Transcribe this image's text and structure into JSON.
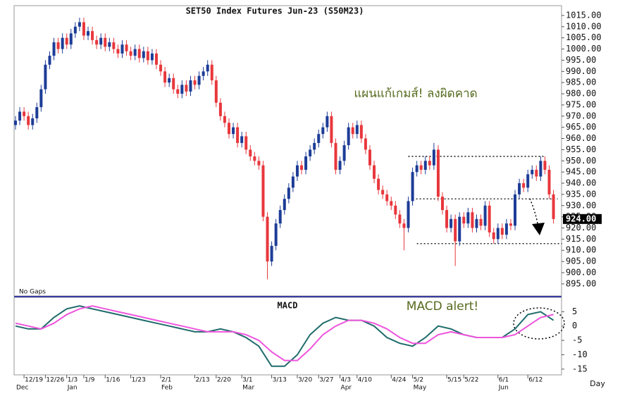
{
  "chart_data": [
    {
      "type": "candlestick",
      "title": "SET50 Index Futures Jun-23 (S50M23)",
      "note": "No Gaps",
      "annotation": "แผนแก้เกมส์! ลงผิดคาด",
      "x_label": "Day",
      "last_label": "924.00",
      "up_color": "#1c3c96",
      "down_color": "#e8373c",
      "categories": [
        null,
        null,
        "12/19",
        null,
        null,
        null,
        null,
        "12/26",
        null,
        null,
        null,
        null,
        "1/3",
        null,
        null,
        null,
        "1/9",
        null,
        null,
        null,
        null,
        "1/16",
        null,
        null,
        null,
        null,
        null,
        "1/23",
        null,
        null,
        null,
        null,
        null,
        null,
        "2/1",
        null,
        null,
        null,
        null,
        null,
        null,
        null,
        "2/13",
        null,
        null,
        null,
        null,
        "2/20",
        null,
        null,
        null,
        null,
        null,
        "3/1",
        null,
        null,
        null,
        null,
        null,
        null,
        "3/13",
        null,
        null,
        null,
        null,
        null,
        "3/20",
        null,
        null,
        null,
        null,
        "3/27",
        null,
        null,
        null,
        null,
        "4/3",
        null,
        null,
        null,
        "4/10",
        null,
        null,
        null,
        null,
        null,
        null,
        null,
        "4/24",
        null,
        null,
        null,
        null,
        "5/2",
        null,
        null,
        null,
        null,
        null,
        null,
        null,
        "5/15",
        null,
        null,
        null,
        "5/22",
        null,
        null,
        null,
        null,
        null,
        null,
        null,
        "6/1",
        null,
        null,
        null,
        null,
        null,
        null,
        "6/12",
        null,
        null,
        null,
        null,
        null,
        null
      ],
      "month_labels": [
        {
          "index": 0,
          "label": "Dec"
        },
        {
          "index": 12,
          "label": "Jan"
        },
        {
          "index": 34,
          "label": "Feb"
        },
        {
          "index": 53,
          "label": "Mar"
        },
        {
          "index": 76,
          "label": "Apr"
        },
        {
          "index": 93,
          "label": "May"
        },
        {
          "index": 113,
          "label": "Jun"
        }
      ],
      "ohlc": [
        [
          966,
          970,
          964,
          968
        ],
        [
          968,
          974,
          966,
          972
        ],
        [
          972,
          974,
          968,
          970
        ],
        [
          970,
          972,
          964,
          966
        ],
        [
          966,
          971,
          964,
          969
        ],
        [
          969,
          976,
          967,
          974
        ],
        [
          974,
          984,
          972,
          982
        ],
        [
          982,
          995,
          980,
          993
        ],
        [
          993,
          999,
          991,
          997
        ],
        [
          997,
          1005,
          995,
          1003
        ],
        [
          1003,
          1005,
          998,
          1000
        ],
        [
          1000,
          1007,
          998,
          1005
        ],
        [
          1005,
          1007,
          1000,
          1002
        ],
        [
          1002,
          1009,
          1000,
          1007
        ],
        [
          1007,
          1012,
          1005,
          1010
        ],
        [
          1010,
          1014,
          1008,
          1012
        ],
        [
          1012,
          1014,
          1004,
          1006
        ],
        [
          1006,
          1010,
          1004,
          1008
        ],
        [
          1008,
          1010,
          1002,
          1004
        ],
        [
          1004,
          1006,
          1000,
          1002
        ],
        [
          1002,
          1007,
          1000,
          1005
        ],
        [
          1005,
          1007,
          999,
          1001
        ],
        [
          1001,
          1005,
          999,
          1003
        ],
        [
          1003,
          1005,
          998,
          1000
        ],
        [
          1000,
          1002,
          996,
          998
        ],
        [
          998,
          1004,
          996,
          1002
        ],
        [
          1002,
          1004,
          997,
          999
        ],
        [
          999,
          1001,
          995,
          997
        ],
        [
          997,
          1002,
          995,
          1000
        ],
        [
          1000,
          1002,
          994,
          996
        ],
        [
          996,
          1001,
          994,
          999
        ],
        [
          999,
          1001,
          993,
          995
        ],
        [
          995,
          1000,
          993,
          998
        ],
        [
          998,
          1000,
          991,
          993
        ],
        [
          993,
          995,
          988,
          990
        ],
        [
          990,
          992,
          983,
          985
        ],
        [
          985,
          989,
          983,
          987
        ],
        [
          987,
          989,
          980,
          982
        ],
        [
          982,
          984,
          978,
          980
        ],
        [
          980,
          986,
          978,
          984
        ],
        [
          984,
          986,
          979,
          981
        ],
        [
          981,
          988,
          979,
          986
        ],
        [
          986,
          988,
          982,
          984
        ],
        [
          984,
          990,
          982,
          988
        ],
        [
          988,
          992,
          986,
          990
        ],
        [
          990,
          995,
          988,
          993
        ],
        [
          993,
          995,
          984,
          986
        ],
        [
          986,
          988,
          974,
          976
        ],
        [
          976,
          978,
          968,
          970
        ],
        [
          970,
          972,
          965,
          967
        ],
        [
          967,
          969,
          960,
          962
        ],
        [
          962,
          967,
          960,
          965
        ],
        [
          965,
          967,
          956,
          958
        ],
        [
          958,
          963,
          956,
          961
        ],
        [
          961,
          963,
          953,
          955
        ],
        [
          955,
          957,
          950,
          952
        ],
        [
          952,
          954,
          948,
          950
        ],
        [
          950,
          952,
          946,
          948
        ],
        [
          948,
          950,
          923,
          925
        ],
        [
          925,
          927,
          897,
          905
        ],
        [
          905,
          914,
          903,
          912
        ],
        [
          912,
          924,
          910,
          922
        ],
        [
          922,
          930,
          920,
          928
        ],
        [
          928,
          935,
          926,
          933
        ],
        [
          933,
          940,
          931,
          938
        ],
        [
          938,
          945,
          936,
          943
        ],
        [
          943,
          950,
          941,
          948
        ],
        [
          948,
          950,
          944,
          946
        ],
        [
          946,
          954,
          944,
          952
        ],
        [
          952,
          957,
          950,
          955
        ],
        [
          955,
          960,
          953,
          958
        ],
        [
          958,
          964,
          956,
          962
        ],
        [
          962,
          967,
          960,
          965
        ],
        [
          965,
          972,
          963,
          970
        ],
        [
          970,
          972,
          956,
          958
        ],
        [
          958,
          960,
          944,
          946
        ],
        [
          946,
          952,
          944,
          950
        ],
        [
          950,
          959,
          948,
          957
        ],
        [
          957,
          967,
          955,
          965
        ],
        [
          965,
          967,
          960,
          962
        ],
        [
          962,
          968,
          960,
          966
        ],
        [
          966,
          968,
          958,
          960
        ],
        [
          960,
          962,
          953,
          955
        ],
        [
          955,
          957,
          946,
          948
        ],
        [
          948,
          950,
          940,
          942
        ],
        [
          942,
          944,
          935,
          937
        ],
        [
          937,
          939,
          933,
          935
        ],
        [
          935,
          937,
          930,
          932
        ],
        [
          932,
          934,
          928,
          930
        ],
        [
          930,
          932,
          924,
          926
        ],
        [
          926,
          928,
          920,
          922
        ],
        [
          922,
          924,
          910,
          920
        ],
        [
          920,
          934,
          918,
          932
        ],
        [
          932,
          947,
          930,
          945
        ],
        [
          945,
          950,
          943,
          948
        ],
        [
          948,
          950,
          944,
          946
        ],
        [
          946,
          952,
          944,
          950
        ],
        [
          950,
          952,
          946,
          948
        ],
        [
          948,
          958,
          946,
          955
        ],
        [
          955,
          957,
          932,
          934
        ],
        [
          934,
          936,
          926,
          928
        ],
        [
          928,
          930,
          918,
          920
        ],
        [
          920,
          926,
          918,
          924
        ],
        [
          924,
          926,
          903,
          914
        ],
        [
          914,
          927,
          912,
          925
        ],
        [
          925,
          927,
          920,
          922
        ],
        [
          922,
          929,
          920,
          927
        ],
        [
          927,
          929,
          918,
          920
        ],
        [
          920,
          926,
          918,
          924
        ],
        [
          924,
          926,
          919,
          921
        ],
        [
          921,
          932,
          919,
          930
        ],
        [
          930,
          932,
          916,
          918
        ],
        [
          918,
          920,
          913,
          915
        ],
        [
          915,
          922,
          913,
          920
        ],
        [
          920,
          922,
          915,
          917
        ],
        [
          917,
          924,
          915,
          922
        ],
        [
          922,
          924,
          919,
          921
        ],
        [
          921,
          937,
          919,
          935
        ],
        [
          935,
          942,
          933,
          940
        ],
        [
          940,
          942,
          936,
          938
        ],
        [
          938,
          946,
          936,
          944
        ],
        [
          944,
          948,
          942,
          946
        ],
        [
          946,
          948,
          941,
          943
        ],
        [
          943,
          952,
          941,
          950
        ],
        [
          950,
          952,
          944,
          946
        ],
        [
          946,
          948,
          933,
          935
        ],
        [
          935,
          937,
          922,
          924
        ]
      ],
      "ylim": [
        889.6,
        1019.4
      ],
      "yticks": [
        {
          "value": 1015,
          "label": "1015.00"
        },
        {
          "value": 1010,
          "label": "1010.00"
        },
        {
          "value": 1005,
          "label": "1005.00"
        },
        {
          "value": 1000,
          "label": "1000.00"
        },
        {
          "value": 995,
          "label": "995.00"
        },
        {
          "value": 990,
          "label": "990.00"
        },
        {
          "value": 985,
          "label": "985.00"
        },
        {
          "value": 980,
          "label": "980.00"
        },
        {
          "value": 975,
          "label": "975.00"
        },
        {
          "value": 970,
          "label": "970.00"
        },
        {
          "value": 965,
          "label": "965.00"
        },
        {
          "value": 960,
          "label": "960.00"
        },
        {
          "value": 955,
          "label": "955.00"
        },
        {
          "value": 950,
          "label": "950.00"
        },
        {
          "value": 945,
          "label": "945.00"
        },
        {
          "value": 940,
          "label": "940.00"
        },
        {
          "value": 935,
          "label": "935.00"
        },
        {
          "value": 930,
          "label": "930.00"
        },
        {
          "value": 925,
          "label": "925.00"
        },
        {
          "value": 920,
          "label": "920.00"
        },
        {
          "value": 915,
          "label": "915.00"
        },
        {
          "value": 910,
          "label": "910.00"
        },
        {
          "value": 905,
          "label": "905.00"
        },
        {
          "value": 900,
          "label": "900.00"
        },
        {
          "value": 895,
          "label": "895.00"
        }
      ],
      "hlines": [
        {
          "value": 952,
          "start": 92,
          "end": 124
        },
        {
          "value": 933,
          "start": 93,
          "end": 127
        },
        {
          "value": 913,
          "start": 94,
          "end": 128
        }
      ],
      "grid": false
    },
    {
      "type": "line",
      "title": "MACD",
      "annotation": "MACD alert!",
      "x": [
        0,
        3,
        6,
        9,
        12,
        15,
        18,
        21,
        24,
        27,
        30,
        33,
        36,
        39,
        42,
        45,
        48,
        51,
        54,
        57,
        60,
        63,
        66,
        69,
        72,
        75,
        78,
        81,
        84,
        87,
        90,
        93,
        96,
        99,
        102,
        105,
        108,
        111,
        114,
        117,
        120,
        123,
        126
      ],
      "series": [
        {
          "color": "#1f6b6b",
          "values": [
            0,
            -1,
            -1,
            3,
            6,
            7,
            6,
            5,
            4,
            3,
            2,
            1,
            0,
            -1,
            -2,
            -2,
            -1,
            -2,
            -4,
            -7,
            -14,
            -14,
            -10,
            -3,
            1,
            3,
            2,
            2,
            0,
            -4,
            -6,
            -7,
            -4,
            0,
            -1,
            -3,
            -4,
            -4,
            -4,
            -1,
            4,
            5,
            2
          ]
        },
        {
          "color": "#ee55dd",
          "values": [
            1,
            0,
            -1,
            1,
            4,
            6,
            7,
            6,
            5,
            4,
            3,
            2,
            1,
            0,
            -1,
            -2,
            -2,
            -2,
            -3,
            -5,
            -9,
            -12,
            -12,
            -8,
            -3,
            0,
            2,
            2,
            1,
            -1,
            -4,
            -6,
            -6,
            -3,
            -2,
            -3,
            -4,
            -4,
            -4,
            -3,
            0,
            3,
            4
          ]
        }
      ],
      "ylim": [
        -17,
        10
      ],
      "yticks": [
        5,
        0,
        -5,
        -10,
        -15
      ],
      "grid": false
    }
  ]
}
